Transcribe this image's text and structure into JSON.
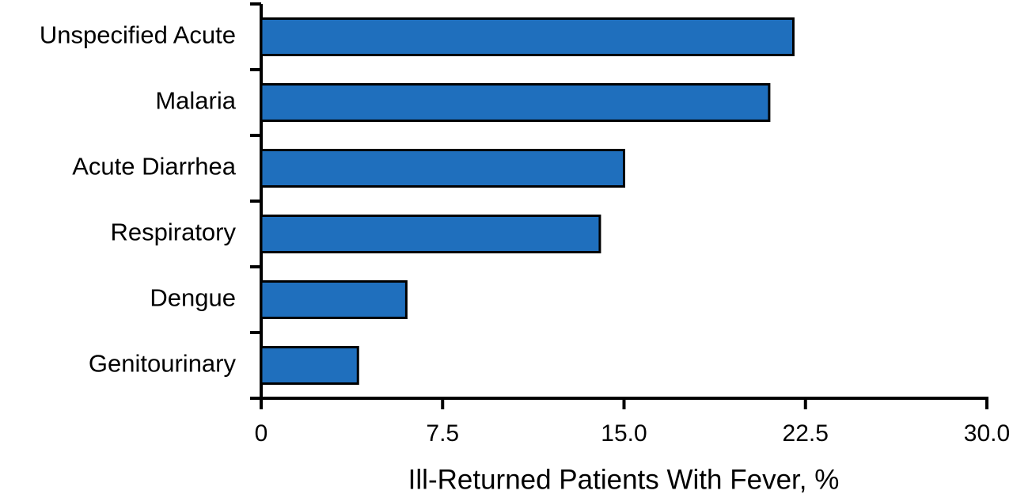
{
  "chart_data": {
    "type": "bar",
    "orientation": "horizontal",
    "x_label": "Ill-Returned Patients With Fever, %",
    "categories": [
      "Unspecified Acute",
      "Malaria",
      "Acute Diarrhea",
      "Respiratory",
      "Dengue",
      "Genitourinary"
    ],
    "values": [
      22.0,
      21.0,
      15.0,
      14.0,
      6.0,
      4.0
    ],
    "color": "#1f6fbd",
    "xlim": [
      0,
      30
    ],
    "xticks": [
      0,
      7.5,
      {
        "value": 15,
        "label": "15.0"
      },
      22.5,
      {
        "value": 30,
        "label": "30.0"
      }
    ],
    "grid": false
  }
}
